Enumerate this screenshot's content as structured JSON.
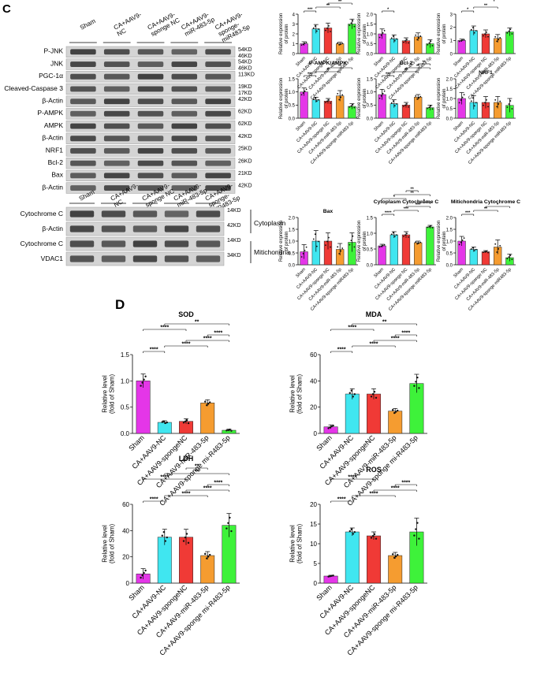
{
  "colors": {
    "Sham": "#e436e8",
    "CA+AAV9-NC": "#40e6f0",
    "CA+AAV9-spongeNC": "#f03a36",
    "CA+AAV9-miR-483-5p": "#f59c30",
    "CA+AAV9-sponge miR483-5p": "#3ef23a"
  },
  "panel_c": {
    "letter": "C",
    "blot_top": {
      "lanes": [
        "Sham",
        "CA+AAV9-\nNC",
        "CA+AAV9-\nsponge NC",
        "CA+AAV9-\nmiR-483-5p",
        "CA+AAV9-\nsponge-\nmiR483-5p"
      ],
      "rows": [
        {
          "name": "P-JNK",
          "kd": [
            "54KD",
            "46KD"
          ]
        },
        {
          "name": "JNK",
          "kd": [
            "54KD",
            "46KD"
          ]
        },
        {
          "name": "PGC-1α",
          "kd": [
            "113KD"
          ]
        },
        {
          "name": "Cleaved-Caspase 3",
          "kd": [
            "19KD",
            "17KD"
          ]
        },
        {
          "name": "β-Actin",
          "kd": [
            "42KD"
          ]
        },
        {
          "name": "P-AMPK",
          "kd": [
            "62KD"
          ]
        },
        {
          "name": "AMPK",
          "kd": [
            "62KD"
          ]
        },
        {
          "name": "β-Actin",
          "kd": [
            "42KD"
          ]
        },
        {
          "name": "NRF1",
          "kd": [
            "25KD"
          ]
        },
        {
          "name": "Bcl-2",
          "kd": [
            "26KD"
          ]
        },
        {
          "name": "Bax",
          "kd": [
            "21KD"
          ]
        },
        {
          "name": "β-Actin",
          "kd": [
            "42KD"
          ]
        }
      ]
    },
    "blot_bottom": {
      "lanes": [
        "Sham",
        "CA+AAV9-\nNC",
        "CA+AAV9-\nsponge NC",
        "CA+AAV9-\nmiR-483-5p",
        "CA+AAV9-\nsponge-\nmiR483-5p"
      ],
      "rows": [
        {
          "name": "Cytochrome C",
          "kd": [
            "14KD"
          ]
        },
        {
          "name": "β-Actin",
          "kd": [
            "42KD"
          ]
        },
        {
          "name": "Cytochrome C",
          "kd": [
            "14KD"
          ]
        },
        {
          "name": "VDAC1",
          "kd": [
            "34KD"
          ]
        }
      ],
      "fractions": [
        "Cytoplasm",
        "Mitichondria"
      ]
    }
  },
  "panel_d": {
    "letter": "D"
  },
  "chart_data": [
    {
      "type": "bar",
      "title": "P-JNK/JNK",
      "ylabel": "Relative expression\nof protein",
      "categories": [
        "Sham",
        "CA+AAV9-NC",
        "CA+AAV9-sponge NC",
        "CA+AAV9-miR-483-5p",
        "CA+AAV9-sponge miR483-5p"
      ],
      "values": [
        1.0,
        2.5,
        2.6,
        1.0,
        3.0
      ],
      "errors": [
        0.2,
        0.45,
        0.5,
        0.15,
        0.5
      ],
      "ylim": [
        0,
        4
      ],
      "yticks": [
        0,
        1,
        2,
        3,
        4
      ],
      "sig": [
        "***",
        "**",
        "**",
        "**",
        "***"
      ]
    },
    {
      "type": "bar",
      "title": "PGC-1α",
      "ylabel": "Relative expression\nof protein",
      "categories": [
        "Sham",
        "CA+AAV9-NC",
        "CA+AAV9-sponge NC",
        "CA+AAV9-miR-483-5p",
        "CA+AAV9-sponge miR483-5p"
      ],
      "values": [
        1.0,
        0.75,
        0.65,
        0.85,
        0.5
      ],
      "errors": [
        0.25,
        0.2,
        0.15,
        0.2,
        0.2
      ],
      "ylim": [
        0,
        2
      ],
      "yticks": [
        0.0,
        0.5,
        1.0,
        1.5,
        2.0
      ],
      "sig": [
        "*"
      ]
    },
    {
      "type": "bar",
      "title": "Cleaved-Caspase 3",
      "ylabel": "Relative expression\nof protein",
      "categories": [
        "Sham",
        "CA+AAV9-NC",
        "CA+AAV9-sponge NC",
        "CA+AAV9-miR-483-5p",
        "CA+AAV9-sponge miR483-5p"
      ],
      "values": [
        1.0,
        1.75,
        1.5,
        1.15,
        1.65
      ],
      "errors": [
        0.1,
        0.35,
        0.3,
        0.3,
        0.3
      ],
      "ylim": [
        0,
        3
      ],
      "yticks": [
        0,
        1,
        2,
        3
      ],
      "sig": [
        "*",
        "**"
      ]
    },
    {
      "type": "bar",
      "title": "P-AMPK/AMPK",
      "ylabel": "Relative expression\nof protein",
      "categories": [
        "Sham",
        "CA+AAV9-NC",
        "CA+AAV9-sponge NC",
        "CA+AAV9-miR-483-5p",
        "CA+AAV9-sponge miR483-5p"
      ],
      "values": [
        1.0,
        0.7,
        0.65,
        0.85,
        0.45
      ],
      "errors": [
        0.15,
        0.1,
        0.1,
        0.2,
        0.1
      ],
      "ylim": [
        0,
        1.5
      ],
      "yticks": [
        0.0,
        0.5,
        1.0,
        1.5
      ],
      "sig": [
        "***",
        "*",
        "**"
      ]
    },
    {
      "type": "bar",
      "title": "Bcl-2",
      "ylabel": "Relative expression\nof protein",
      "categories": [
        "Sham",
        "CA+AAV9-NC",
        "CA+AAV9-sponge NC",
        "CA+AAV9-miR-483-5p",
        "CA+AAV9-sponge miR483-5p"
      ],
      "values": [
        0.9,
        0.55,
        0.5,
        0.8,
        0.4
      ],
      "errors": [
        0.2,
        0.15,
        0.1,
        0.1,
        0.1
      ],
      "ylim": [
        0,
        1.5
      ],
      "yticks": [
        0.0,
        0.5,
        1.0,
        1.5
      ],
      "sig": [
        "***",
        "**",
        "**",
        "**"
      ]
    },
    {
      "type": "bar",
      "title": "NRF1",
      "ylabel": "Relative expression\nof protein",
      "categories": [
        "Sham",
        "CA+AAV9-NC",
        "CA+AAV9-sponge NC",
        "CA+AAV9-miR-483-5p",
        "CA+AAV9-sponge miR483-5p"
      ],
      "values": [
        1.0,
        0.8,
        0.8,
        0.8,
        0.65
      ],
      "errors": [
        0.3,
        0.35,
        0.3,
        0.3,
        0.35
      ],
      "ylim": [
        0,
        2
      ],
      "yticks": [
        0.0,
        0.5,
        1.0,
        1.5,
        2.0
      ],
      "sig": []
    },
    {
      "type": "bar",
      "title": "Bax",
      "ylabel": "Relative expression\nof protein",
      "categories": [
        "Sham",
        "CA+AAV9-NC",
        "CA+AAV9-sponge NC",
        "CA+AAV9-miR-483-5p",
        "CA+AAV9-sponge miR483-5p"
      ],
      "values": [
        0.55,
        1.0,
        1.0,
        0.65,
        0.95
      ],
      "errors": [
        0.3,
        0.45,
        0.35,
        0.25,
        0.4
      ],
      "ylim": [
        0,
        2
      ],
      "yticks": [
        0.0,
        0.5,
        1.0,
        1.5,
        2.0
      ],
      "sig": []
    },
    {
      "type": "bar",
      "title": "Cytoplasm Cytochrome C",
      "ylabel": "Relative expression\nof protein",
      "categories": [
        "Sham",
        "CA+AAV9-NC",
        "CA+AAV9-sponge NC",
        "CA+AAV9-miR-483-5p",
        "CA+AAV9-sponge miR483-5p"
      ],
      "values": [
        0.6,
        0.95,
        0.95,
        0.7,
        1.2
      ],
      "errors": [
        0.05,
        0.1,
        0.1,
        0.05,
        0.05
      ],
      "ylim": [
        0,
        1.5
      ],
      "yticks": [
        0.0,
        0.5,
        1.0,
        1.5
      ],
      "sig": [
        "****",
        "***",
        "***",
        "*",
        "*",
        "**",
        "**"
      ]
    },
    {
      "type": "bar",
      "title": "Mitichondria Cytochrome C",
      "ylabel": "Relative expression\nof protein",
      "categories": [
        "Sham",
        "CA+AAV9-NC",
        "CA+AAV9-sponge NC",
        "CA+AAV9-miR-483-5p",
        "CA+AAV9-sponge miR483-5p"
      ],
      "values": [
        1.0,
        0.65,
        0.55,
        0.75,
        0.3
      ],
      "errors": [
        0.2,
        0.1,
        0.05,
        0.3,
        0.15
      ],
      "ylim": [
        0,
        2
      ],
      "yticks": [
        0.0,
        0.5,
        1.0,
        1.5,
        2.0
      ],
      "sig": [
        "***",
        "**",
        "*"
      ]
    },
    {
      "type": "bar",
      "title": "SOD",
      "ylabel": "Relative level\n(fold of Sham)",
      "categories": [
        "Sham",
        "CA+AAV9-NC",
        "CA+AAV9-spongeNC",
        "CA+AAV9-miR-483-5p",
        "CA+AAV9-sponge mi-R483-5p"
      ],
      "values": [
        1.0,
        0.21,
        0.23,
        0.58,
        0.06
      ],
      "errors": [
        0.13,
        0.03,
        0.05,
        0.06,
        0.02
      ],
      "ylim": [
        0,
        1.5
      ],
      "yticks": [
        0.0,
        0.5,
        1.0,
        1.5
      ],
      "sig": [
        "****",
        "****",
        "****",
        "****",
        "****",
        "**"
      ]
    },
    {
      "type": "bar",
      "title": "MDA",
      "ylabel": "Relative level\n(fold of Sham)",
      "categories": [
        "Sham",
        "CA+AAV9-NC",
        "CA+AAV9-spongeNC",
        "CA+AAV9-miR-483-5p",
        "CA+AAV9-sponge mi-R483-5p"
      ],
      "values": [
        5,
        30,
        30,
        17,
        38
      ],
      "errors": [
        1.5,
        4,
        4,
        2,
        7
      ],
      "ylim": [
        0,
        60
      ],
      "yticks": [
        0,
        20,
        40,
        60
      ],
      "sig": [
        "****",
        "****",
        "****",
        "****",
        "****",
        "**"
      ]
    },
    {
      "type": "bar",
      "title": "LDH",
      "ylabel": "Relative level\n(fold of Sham)",
      "categories": [
        "Sham",
        "CA+AAV9-NC",
        "CA+AAV9-spongeNC",
        "CA+AAV9-miR-483-5p",
        "CA+AAV9-sponge mi-R483-5p"
      ],
      "values": [
        7,
        35,
        35,
        21,
        44
      ],
      "errors": [
        4,
        6,
        6,
        3,
        9
      ],
      "ylim": [
        0,
        60
      ],
      "yticks": [
        0,
        20,
        40,
        60
      ],
      "sig": [
        "****",
        "****",
        "****",
        "****",
        "****",
        "**",
        "**"
      ]
    },
    {
      "type": "bar",
      "title": "ROS",
      "ylabel": "Relative level\n(fold of Sham)",
      "categories": [
        "Sham",
        "CA+AAV9-NC",
        "CA+AAV9-spongeNC",
        "CA+AAV9-miR-483-5p",
        "CA+AAV9-sponge mi-R483-5p"
      ],
      "values": [
        1.8,
        13,
        12,
        7,
        13
      ],
      "errors": [
        0.2,
        1,
        1,
        0.8,
        3.5
      ],
      "ylim": [
        0,
        20
      ],
      "yticks": [
        0,
        5,
        10,
        15,
        20
      ],
      "sig": [
        "****",
        "****",
        "****",
        "****",
        "****"
      ]
    }
  ]
}
